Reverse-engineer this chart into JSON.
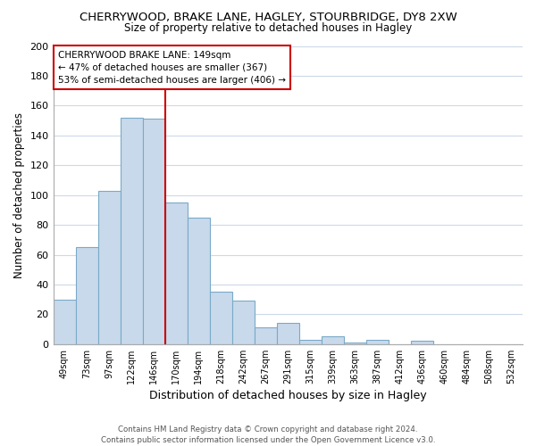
{
  "title": "CHERRYWOOD, BRAKE LANE, HAGLEY, STOURBRIDGE, DY8 2XW",
  "subtitle": "Size of property relative to detached houses in Hagley",
  "xlabel": "Distribution of detached houses by size in Hagley",
  "ylabel": "Number of detached properties",
  "bar_color": "#c8d9eb",
  "bar_edge_color": "#7aaac8",
  "bins": [
    "49sqm",
    "73sqm",
    "97sqm",
    "122sqm",
    "146sqm",
    "170sqm",
    "194sqm",
    "218sqm",
    "242sqm",
    "267sqm",
    "291sqm",
    "315sqm",
    "339sqm",
    "363sqm",
    "387sqm",
    "412sqm",
    "436sqm",
    "460sqm",
    "484sqm",
    "508sqm",
    "532sqm"
  ],
  "values": [
    30,
    65,
    103,
    152,
    151,
    95,
    85,
    35,
    29,
    11,
    14,
    3,
    5,
    1,
    3,
    0,
    2,
    0,
    0,
    0,
    0
  ],
  "marker_line_color": "#cc0000",
  "annotation_text_line1": "CHERRYWOOD BRAKE LANE: 149sqm",
  "annotation_text_line2": "← 47% of detached houses are smaller (367)",
  "annotation_text_line3": "53% of semi-detached houses are larger (406) →",
  "ylim": [
    0,
    200
  ],
  "yticks": [
    0,
    20,
    40,
    60,
    80,
    100,
    120,
    140,
    160,
    180,
    200
  ],
  "footer_line1": "Contains HM Land Registry data © Crown copyright and database right 2024.",
  "footer_line2": "Contains public sector information licensed under the Open Government Licence v3.0.",
  "background_color": "#ffffff",
  "grid_color": "#ccd9e8"
}
